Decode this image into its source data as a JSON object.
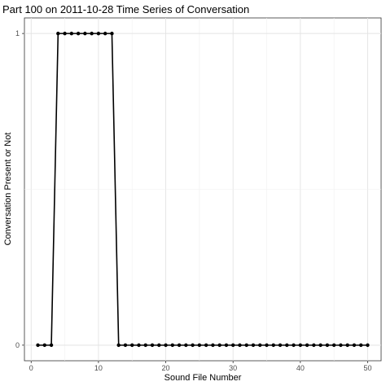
{
  "chart_data": {
    "type": "line",
    "title": "Part 100 on 2011-10-28 Time Series of Conversation",
    "xlabel": "Sound File Number",
    "ylabel": "Conversation Present or Not",
    "xlim": [
      -1,
      52
    ],
    "ylim": [
      -0.05,
      1.05
    ],
    "x_ticks": [
      0,
      10,
      20,
      30,
      40,
      50
    ],
    "y_ticks": [
      0,
      1
    ],
    "grid": true,
    "legend": "none",
    "series": [
      {
        "x": [
          1,
          2,
          3,
          4,
          5,
          6,
          7,
          8,
          9,
          10,
          11,
          12,
          13,
          14,
          15,
          16,
          17,
          18,
          19,
          20,
          21,
          22,
          23,
          24,
          25,
          26,
          27,
          28,
          29,
          30,
          31,
          32,
          33,
          34,
          35,
          36,
          37,
          38,
          39,
          40,
          41,
          42,
          43,
          44,
          45,
          46,
          47,
          48,
          49,
          50
        ],
        "y": [
          0,
          0,
          0,
          1,
          1,
          1,
          1,
          1,
          1,
          1,
          1,
          1,
          0,
          0,
          0,
          0,
          0,
          0,
          0,
          0,
          0,
          0,
          0,
          0,
          0,
          0,
          0,
          0,
          0,
          0,
          0,
          0,
          0,
          0,
          0,
          0,
          0,
          0,
          0,
          0,
          0,
          0,
          0,
          0,
          0,
          0,
          0,
          0,
          0,
          0
        ],
        "color": "#000000"
      }
    ]
  }
}
